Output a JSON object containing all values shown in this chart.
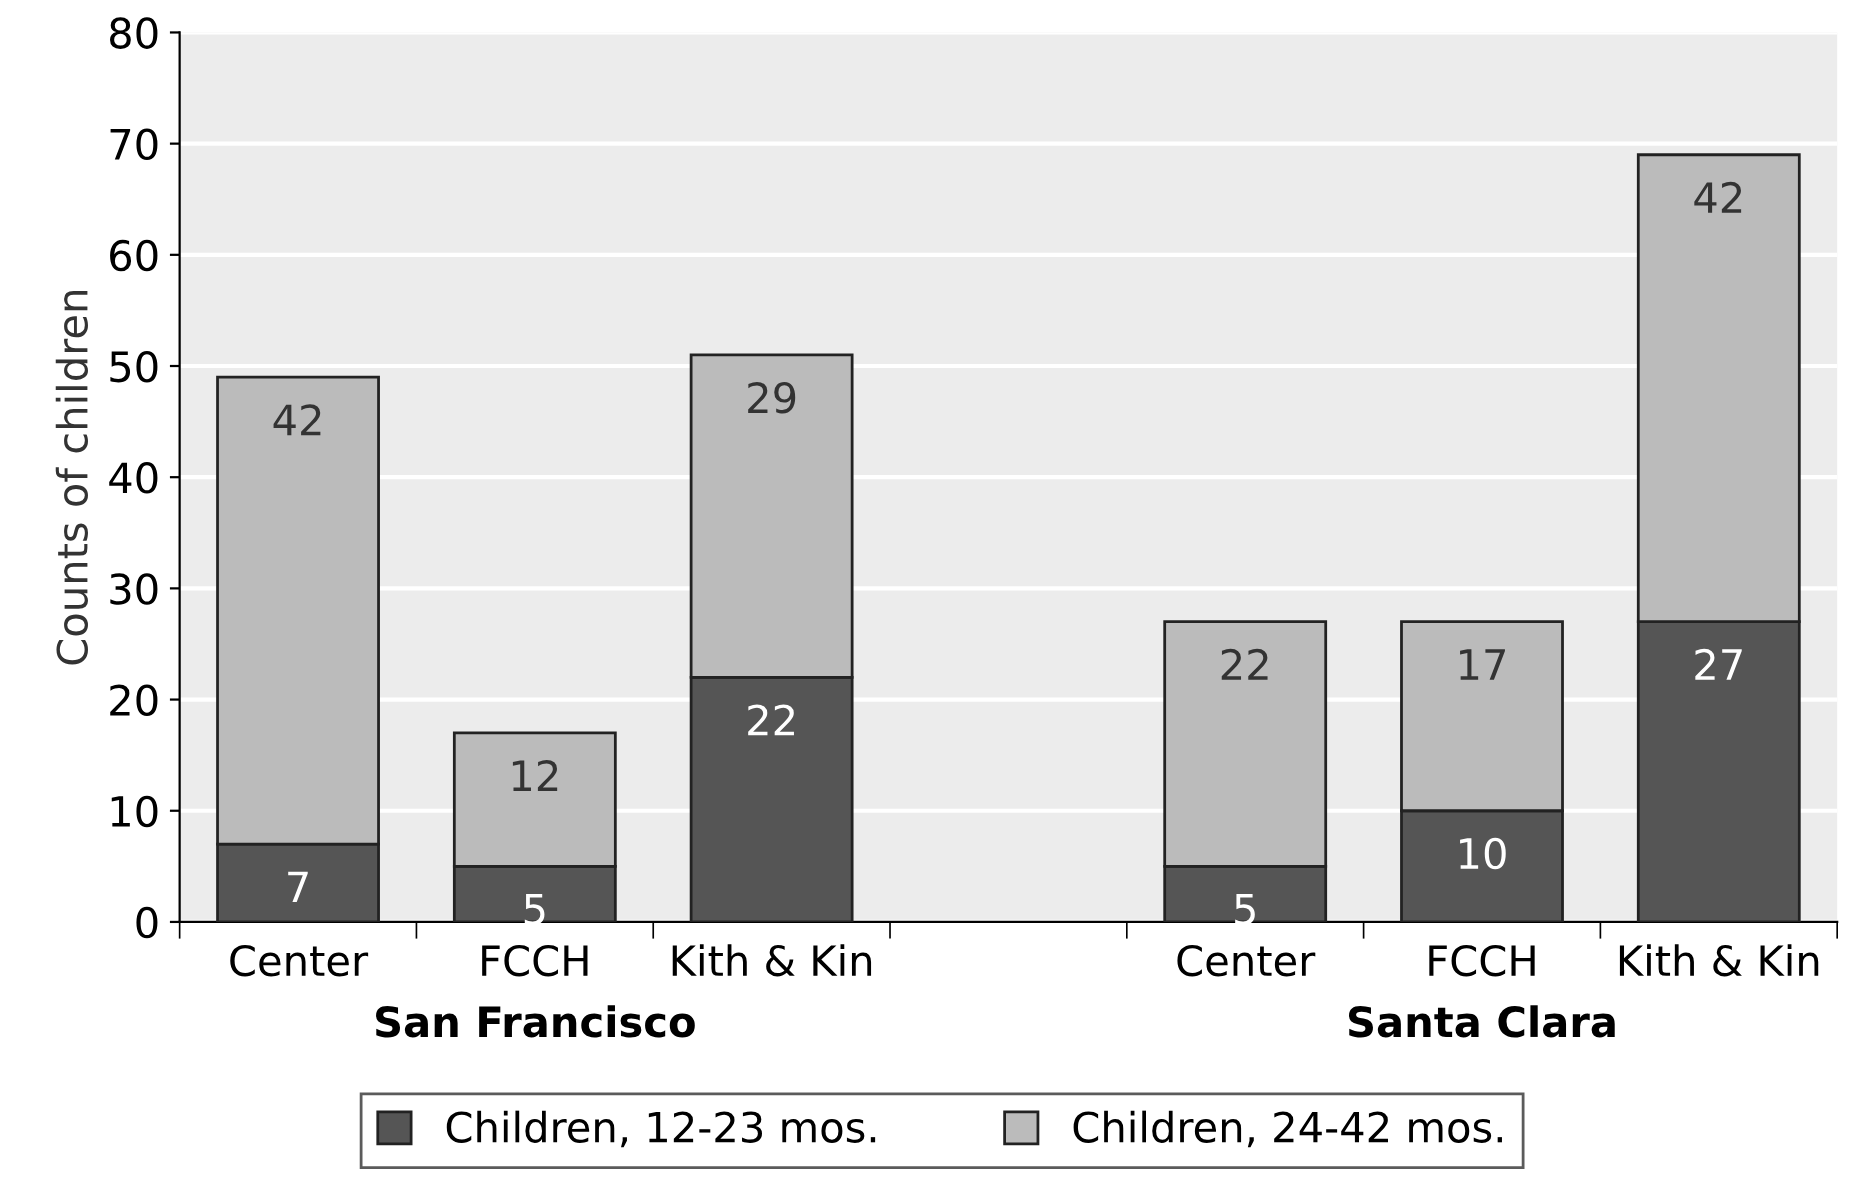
{
  "chart_data": {
    "type": "bar",
    "stacked": true,
    "ylabel": "Counts of children",
    "categories": [
      "Center",
      "FCCH",
      "Kith & Kin",
      null,
      "Center",
      "FCCH",
      "Kith & Kin"
    ],
    "series": [
      {
        "name": "Children, 12-23 mos.",
        "color": "#555555",
        "values": [
          7,
          5,
          22,
          null,
          5,
          10,
          27
        ]
      },
      {
        "name": "Children, 24-42 mos.",
        "color": "#bbbbbb",
        "values": [
          42,
          12,
          29,
          null,
          22,
          17,
          42
        ]
      }
    ],
    "ylim": [
      0,
      80
    ],
    "yticks": [
      0,
      10,
      20,
      30,
      40,
      50,
      60,
      70,
      80
    ],
    "grid": "y",
    "data_labels": true,
    "legend": "bottom",
    "annotations": [
      "San Francisco",
      "Santa Clara"
    ]
  }
}
